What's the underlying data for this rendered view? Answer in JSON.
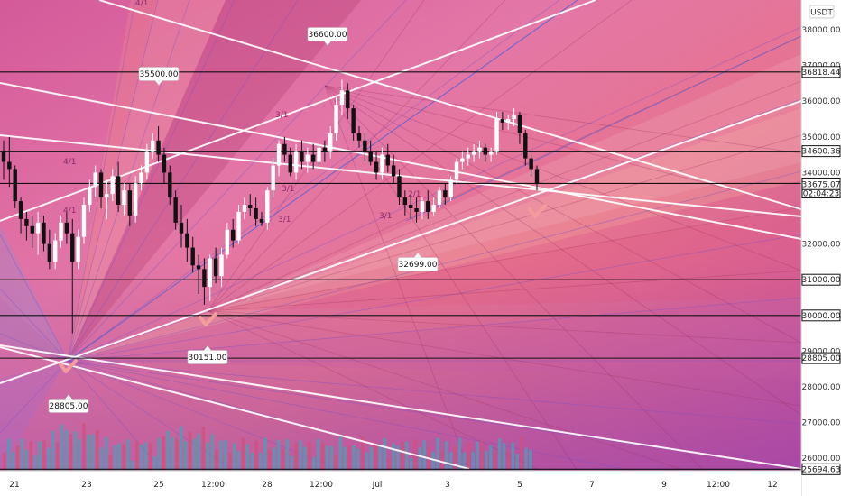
{
  "chart_data": {
    "type": "candlestick",
    "currency": "USDT",
    "x_ticks": [
      "21",
      "23",
      "25",
      "12:00",
      "28",
      "12:00",
      "Jul",
      "3",
      "5",
      "7",
      "9",
      "12:00",
      "12"
    ],
    "y_ticks": [
      "38000.00",
      "37000.00",
      "36000.00",
      "35000.00",
      "34000.00",
      "32000.00",
      "31000.00",
      "30000.00",
      "29000.00",
      "28000.00",
      "27000.00",
      "26000.00"
    ],
    "tagged_levels": [
      {
        "value": 36818.44,
        "label": "36818.44"
      },
      {
        "value": 34600.36,
        "label": "34600.36"
      },
      {
        "value": 33695.52,
        "label": "33695.52",
        "countdown": "02:04:23",
        "current": true
      },
      {
        "value": 33675.07,
        "label": "33675.07"
      },
      {
        "value": 31000,
        "label": "31000.00"
      },
      {
        "value": 30000,
        "label": "30000.00"
      },
      {
        "value": 28805,
        "label": "28805.00"
      },
      {
        "value": 25694.63,
        "label": "25694.63"
      }
    ],
    "callouts": [
      {
        "label": "36600.00"
      },
      {
        "label": "35500.00"
      },
      {
        "label": "32699.00"
      },
      {
        "label": "30151.00"
      },
      {
        "label": "28805.00"
      }
    ],
    "fan_labels": [
      "4/1",
      "3/1",
      "4/1",
      "4/1",
      "3/1",
      "2/1",
      "3/1",
      "3/1"
    ],
    "candles": [
      [
        34600,
        34900,
        33800,
        34300
      ],
      [
        34300,
        35000,
        33600,
        34100
      ],
      [
        34100,
        34200,
        33000,
        33200
      ],
      [
        33200,
        33300,
        32300,
        32700
      ],
      [
        32700,
        32900,
        32100,
        32500
      ],
      [
        32500,
        32800,
        31900,
        32300
      ],
      [
        32300,
        32900,
        31700,
        32600
      ],
      [
        32600,
        32800,
        31800,
        32000
      ],
      [
        32000,
        32400,
        31300,
        31500
      ],
      [
        31500,
        32300,
        31300,
        32100
      ],
      [
        32100,
        32800,
        31900,
        32600
      ],
      [
        32600,
        32900,
        32000,
        32300
      ],
      [
        32300,
        32700,
        29500,
        31500
      ],
      [
        31500,
        32400,
        31300,
        32200
      ],
      [
        32200,
        33300,
        32000,
        33100
      ],
      [
        33100,
        33800,
        32900,
        33600
      ],
      [
        33600,
        34200,
        33300,
        34000
      ],
      [
        34000,
        34100,
        33000,
        33300
      ],
      [
        33300,
        33800,
        32700,
        33400
      ],
      [
        33400,
        34100,
        33200,
        33900
      ],
      [
        33900,
        34300,
        32900,
        33100
      ],
      [
        33100,
        33700,
        32800,
        33500
      ],
      [
        33500,
        33700,
        32500,
        32800
      ],
      [
        32800,
        33900,
        32600,
        33700
      ],
      [
        33700,
        34200,
        33500,
        34000
      ],
      [
        34000,
        34800,
        33800,
        34600
      ],
      [
        34600,
        35100,
        34400,
        34900
      ],
      [
        34900,
        35300,
        34300,
        34500
      ],
      [
        34500,
        34700,
        33700,
        34000
      ],
      [
        34000,
        34200,
        33100,
        33300
      ],
      [
        33300,
        33500,
        32400,
        32600
      ],
      [
        32600,
        33100,
        31900,
        32300
      ],
      [
        32300,
        32700,
        31500,
        31900
      ],
      [
        31900,
        32200,
        31200,
        31400
      ],
      [
        31400,
        31700,
        30600,
        31300
      ],
      [
        31300,
        31600,
        30300,
        30800
      ],
      [
        30800,
        31700,
        30400,
        31600
      ],
      [
        31600,
        31900,
        30900,
        31100
      ],
      [
        31100,
        31900,
        30800,
        31700
      ],
      [
        31700,
        32600,
        31600,
        32400
      ],
      [
        32400,
        32700,
        31900,
        32100
      ],
      [
        32100,
        33100,
        32000,
        32900
      ],
      [
        32900,
        33300,
        32700,
        33100
      ],
      [
        33100,
        33400,
        32800,
        33000
      ],
      [
        33000,
        33300,
        32500,
        32700
      ],
      [
        32700,
        32900,
        32500,
        32600
      ],
      [
        32600,
        33600,
        32400,
        33500
      ],
      [
        33500,
        34400,
        33300,
        34200
      ],
      [
        34200,
        34900,
        33900,
        34800
      ],
      [
        34800,
        35000,
        34300,
        34500
      ],
      [
        34500,
        34700,
        33900,
        34000
      ],
      [
        34000,
        34800,
        33800,
        34600
      ],
      [
        34600,
        34900,
        34100,
        34300
      ],
      [
        34300,
        34700,
        34000,
        34500
      ],
      [
        34500,
        34800,
        34100,
        34300
      ],
      [
        34300,
        34800,
        34200,
        34700
      ],
      [
        34700,
        34900,
        34300,
        34600
      ],
      [
        34600,
        35300,
        34400,
        35100
      ],
      [
        35100,
        36100,
        34900,
        35900
      ],
      [
        35900,
        36600,
        35600,
        36300
      ],
      [
        36300,
        36500,
        35500,
        35800
      ],
      [
        35800,
        35900,
        34900,
        35100
      ],
      [
        35100,
        35300,
        34700,
        34900
      ],
      [
        34900,
        35100,
        34300,
        34600
      ],
      [
        34600,
        34900,
        34200,
        34300
      ],
      [
        34300,
        34600,
        33800,
        34000
      ],
      [
        34000,
        34700,
        33800,
        34500
      ],
      [
        34500,
        34800,
        34000,
        34200
      ],
      [
        34200,
        34500,
        33700,
        33900
      ],
      [
        33900,
        34100,
        33100,
        33300
      ],
      [
        33300,
        33500,
        32800,
        33100
      ],
      [
        33100,
        33400,
        32700,
        33000
      ],
      [
        33000,
        33300,
        32600,
        32900
      ],
      [
        32900,
        33300,
        32700,
        33200
      ],
      [
        33200,
        33500,
        32700,
        32900
      ],
      [
        32900,
        33300,
        32800,
        33100
      ],
      [
        33100,
        33600,
        33000,
        33500
      ],
      [
        33500,
        33700,
        33100,
        33300
      ],
      [
        33300,
        33900,
        33200,
        33800
      ],
      [
        33800,
        34400,
        33700,
        34300
      ],
      [
        34300,
        34600,
        34100,
        34400
      ],
      [
        34400,
        34700,
        34200,
        34500
      ],
      [
        34500,
        34800,
        34300,
        34600
      ],
      [
        34600,
        34900,
        34400,
        34700
      ],
      [
        34700,
        34800,
        34300,
        34500
      ],
      [
        34500,
        34700,
        34300,
        34600
      ],
      [
        34600,
        35700,
        34500,
        35500
      ],
      [
        35500,
        35700,
        35200,
        35400
      ],
      [
        35400,
        35600,
        35200,
        35500
      ],
      [
        35500,
        35800,
        35300,
        35600
      ],
      [
        35600,
        35700,
        34800,
        35100
      ],
      [
        35100,
        35200,
        34200,
        34400
      ],
      [
        34400,
        34500,
        33900,
        34100
      ],
      [
        34100,
        34200,
        33500,
        33700
      ]
    ]
  }
}
